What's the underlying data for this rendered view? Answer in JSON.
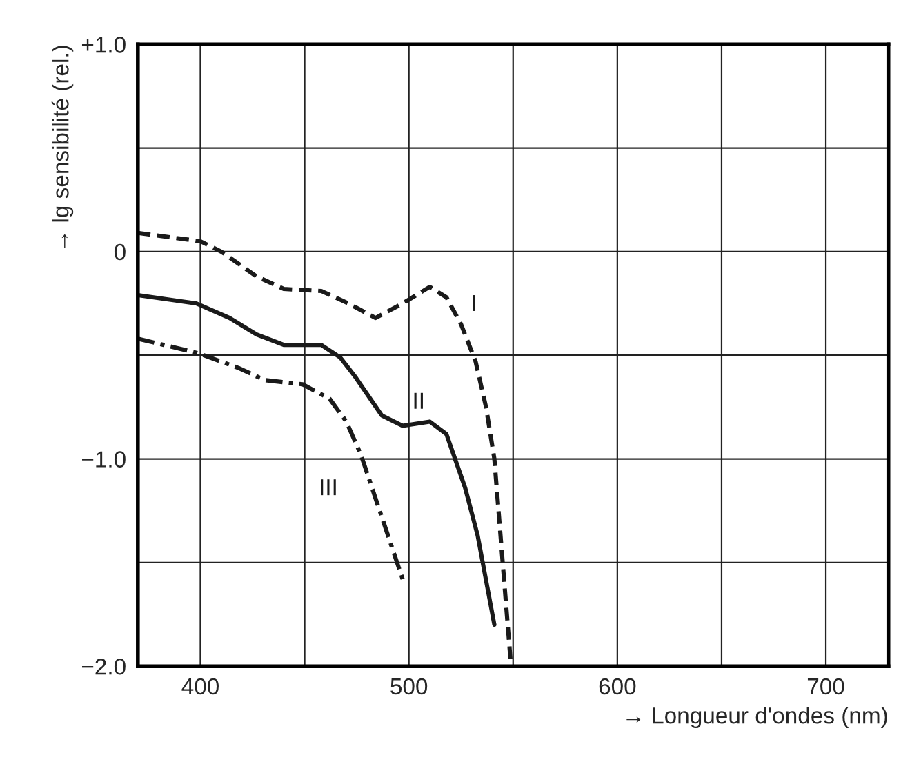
{
  "chart_data": {
    "type": "line",
    "xlabel": "→ Longueur d'ondes (nm)",
    "ylabel": "→ lg sensibilité (rel.)",
    "xlim": [
      370,
      730
    ],
    "ylim": [
      -2.0,
      1.0
    ],
    "xticks": [
      400,
      {
        "value": 450,
        "label": null
      },
      500,
      {
        "value": 550,
        "label": null
      },
      600,
      {
        "value": 650,
        "label": null
      },
      700
    ],
    "yticks": [
      {
        "value": 1.0,
        "label": "+1.0"
      },
      {
        "value": 0.5,
        "label": null
      },
      0,
      {
        "value": -0.5,
        "label": null
      },
      {
        "value": -1.0,
        "label": "−1.0"
      },
      {
        "value": -1.5,
        "label": null
      },
      {
        "value": -2.0,
        "label": "−2.0"
      }
    ],
    "grid": true,
    "legend": false,
    "series": [
      {
        "name": "I",
        "color": "#1a1a1a",
        "line_style": "dashed",
        "x": [
          370,
          400,
          410,
          427,
          440,
          458,
          471,
          484,
          497,
          510,
          518,
          525,
          532,
          537,
          541,
          545,
          549
        ],
        "values": [
          0.09,
          0.05,
          0.0,
          -0.12,
          -0.18,
          -0.19,
          -0.25,
          -0.32,
          -0.25,
          -0.17,
          -0.22,
          -0.35,
          -0.53,
          -0.75,
          -1.0,
          -1.5,
          -2.0
        ]
      },
      {
        "name": "II",
        "color": "#1a1a1a",
        "line_style": "solid",
        "x": [
          370,
          398,
          414,
          427,
          440,
          458,
          467,
          474,
          487,
          497,
          510,
          518,
          527,
          533,
          541
        ],
        "values": [
          -0.21,
          -0.25,
          -0.32,
          -0.4,
          -0.45,
          -0.45,
          -0.51,
          -0.6,
          -0.79,
          -0.84,
          -0.82,
          -0.88,
          -1.14,
          -1.37,
          -1.8
        ]
      },
      {
        "name": "III",
        "color": "#1a1a1a",
        "line_style": "dashdot",
        "x": [
          370,
          399,
          418,
          431,
          449,
          462,
          470,
          477,
          486,
          497
        ],
        "values": [
          -0.42,
          -0.49,
          -0.56,
          -0.62,
          -0.64,
          -0.71,
          -0.82,
          -0.98,
          -1.25,
          -1.58
        ]
      }
    ]
  }
}
